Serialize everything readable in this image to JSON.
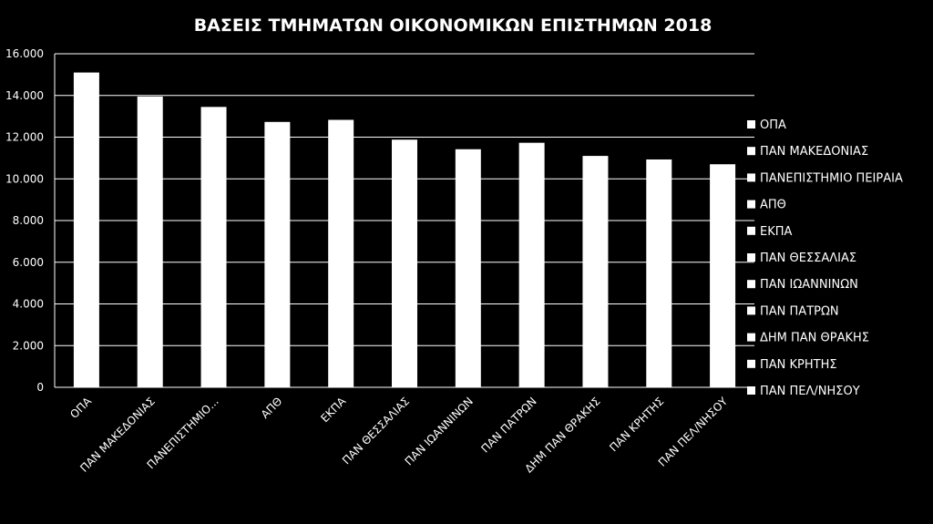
{
  "chart_data": {
    "type": "bar",
    "title": "ΒΑΣΕΙΣ ΤΜΗΜΑΤΩΝ ΟΙΚΟΝΟΜΙΚΩΝ ΕΠΙΣΤΗΜΩΝ 2018",
    "categories": [
      "ΟΠΑ",
      "ΠΑΝ ΜΑΚΕΔΟΝΙΑΣ",
      "ΠΑΝΕΠΙΣΤΗΜΙΟ...",
      "ΑΠΘ",
      "ΕΚΠΑ",
      "ΠΑΝ ΘΕΣΣΑΛΙΑΣ",
      "ΠΑΝ ΙΩΑΝΝΙΝΩΝ",
      "ΠΑΝ ΠΑΤΡΩΝ",
      "ΔΗΜ ΠΑΝ ΘΡΑΚΗΣ",
      "ΠΑΝ ΚΡΗΤΗΣ",
      "ΠΑΝ ΠΕΛ/ΝΗΣΟΥ"
    ],
    "values": [
      15100,
      13950,
      13450,
      12730,
      12830,
      11880,
      11420,
      11730,
      11100,
      10930,
      10700
    ],
    "ylim": [
      0,
      16000
    ],
    "yticks": [
      "0",
      "2.000",
      "4.000",
      "6.000",
      "8.000",
      "10.000",
      "12.000",
      "14.000",
      "16.000"
    ],
    "ytick_values": [
      0,
      2000,
      4000,
      6000,
      8000,
      10000,
      12000,
      14000,
      16000
    ],
    "grid": true,
    "legend_position": "right",
    "legend": [
      "ΟΠΑ",
      "ΠΑΝ ΜΑΚΕΔΟΝΙΑΣ",
      "ΠΑΝΕΠΙΣΤΗΜΙΟ ΠΕΙΡΑΙΑ",
      "ΑΠΘ",
      "ΕΚΠΑ",
      "ΠΑΝ ΘΕΣΣΑΛΙΑΣ",
      "ΠΑΝ ΙΩΑΝΝΙΝΩΝ",
      "ΠΑΝ ΠΑΤΡΩΝ",
      "ΔΗΜ ΠΑΝ ΘΡΑΚΗΣ",
      "ΠΑΝ ΚΡΗΤΗΣ",
      "ΠΑΝ ΠΕΛ/ΝΗΣΟΥ"
    ],
    "colors": {
      "background": "#000000",
      "bar": "#ffffff",
      "text": "#ffffff",
      "grid": "#ffffff"
    }
  }
}
